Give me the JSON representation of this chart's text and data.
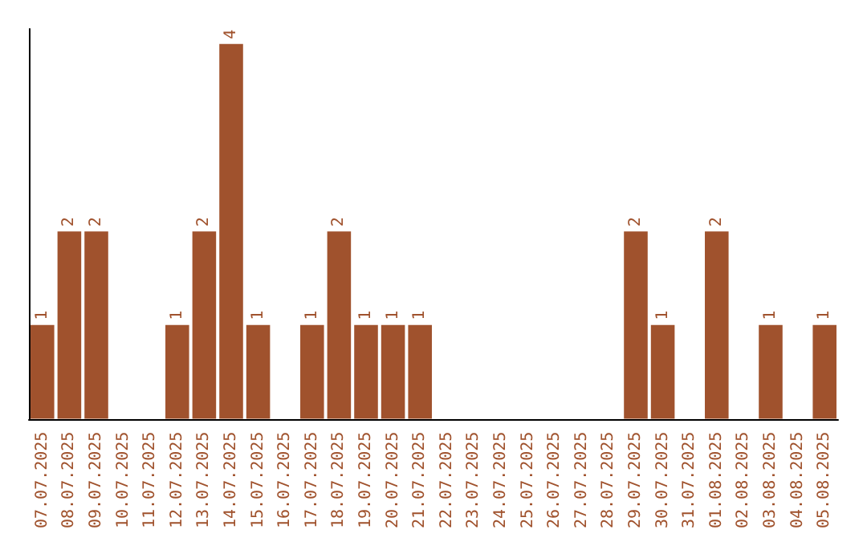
{
  "chart_data": {
    "type": "bar",
    "categories": [
      "07.07.2025",
      "08.07.2025",
      "09.07.2025",
      "10.07.2025",
      "11.07.2025",
      "12.07.2025",
      "13.07.2025",
      "14.07.2025",
      "15.07.2025",
      "16.07.2025",
      "17.07.2025",
      "18.07.2025",
      "19.07.2025",
      "20.07.2025",
      "21.07.2025",
      "22.07.2025",
      "23.07.2025",
      "24.07.2025",
      "25.07.2025",
      "26.07.2025",
      "27.07.2025",
      "28.07.2025",
      "29.07.2025",
      "30.07.2025",
      "31.07.2025",
      "01.08.2025",
      "02.08.2025",
      "03.08.2025",
      "04.08.2025",
      "05.08.2025"
    ],
    "values": [
      1,
      2,
      2,
      0,
      0,
      1,
      2,
      4,
      1,
      0,
      1,
      2,
      1,
      1,
      1,
      0,
      0,
      0,
      0,
      0,
      0,
      0,
      2,
      1,
      0,
      2,
      0,
      1,
      0,
      1
    ],
    "value_labels": [
      "1",
      "2",
      "2",
      null,
      null,
      "1",
      "2",
      "4",
      "1",
      null,
      "1",
      "2",
      "1",
      "1",
      "1",
      null,
      null,
      null,
      null,
      null,
      null,
      null,
      "2",
      "1",
      null,
      "2",
      null,
      "1",
      null,
      "1"
    ],
    "color": "#a0522d",
    "tick_labels": "x"
  }
}
